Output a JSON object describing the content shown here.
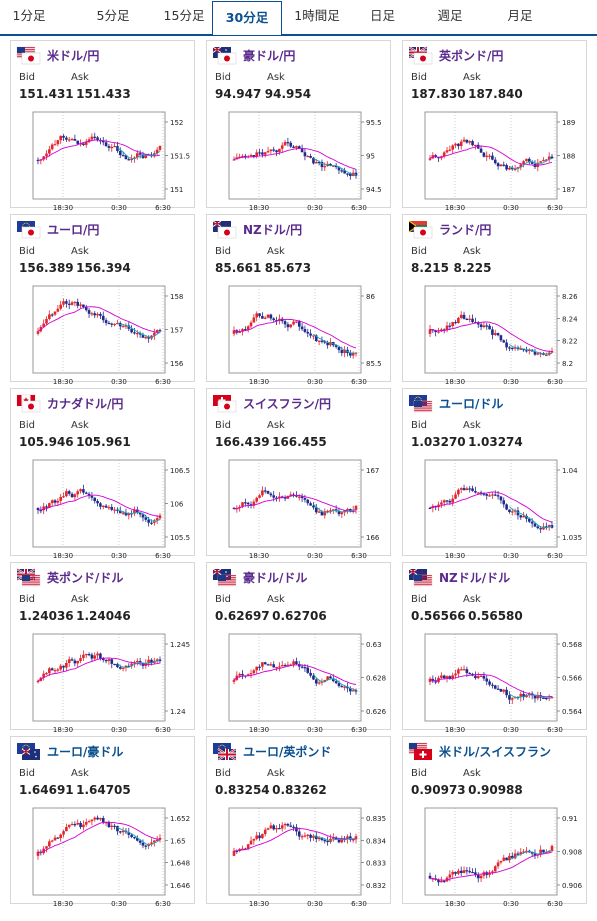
{
  "tabs": [
    {
      "label": "1分足"
    },
    {
      "label": "5分足"
    },
    {
      "label": "15分足"
    },
    {
      "label": "30分足",
      "active": true
    },
    {
      "label": "1時間足"
    },
    {
      "label": "日足"
    },
    {
      "label": "週足"
    },
    {
      "label": "月足"
    }
  ],
  "labels": {
    "bid": "Bid",
    "ask": "Ask"
  },
  "time_ticks": [
    "18:30",
    "0:30",
    "6:30"
  ],
  "colors": {
    "up": "#e3262c",
    "down": "#1f2a8c",
    "ma1": "#d400d4",
    "ma2": "#1aa7b5",
    "pair": "#5a2a8c",
    "pair_alt": "#0a4f8f"
  },
  "cards": [
    {
      "pair": "米ドル/円",
      "flags": [
        "us",
        "jp"
      ],
      "bid": "151.431",
      "ask": "151.433",
      "yticks": [
        "152",
        "151.5",
        "151"
      ]
    },
    {
      "pair": "豪ドル/円",
      "flags": [
        "au",
        "jp"
      ],
      "bid": "94.947",
      "ask": "94.954",
      "yticks": [
        "95.5",
        "95",
        "94.5"
      ]
    },
    {
      "pair": "英ポンド/円",
      "flags": [
        "gb",
        "jp"
      ],
      "bid": "187.830",
      "ask": "187.840",
      "yticks": [
        "189",
        "188",
        "187"
      ]
    },
    {
      "pair": "ユーロ/円",
      "flags": [
        "eu",
        "jp"
      ],
      "bid": "156.389",
      "ask": "156.394",
      "yticks": [
        "158",
        "157",
        "156"
      ]
    },
    {
      "pair": "NZドル/円",
      "flags": [
        "nz",
        "jp"
      ],
      "bid": "85.661",
      "ask": "85.673",
      "yticks": [
        "86",
        "85.5"
      ]
    },
    {
      "pair": "ランド/円",
      "flags": [
        "za",
        "jp"
      ],
      "bid": "8.215",
      "ask": "8.225",
      "yticks": [
        "8.26",
        "8.24",
        "8.22",
        "8.2"
      ]
    },
    {
      "pair": "カナダドル/円",
      "flags": [
        "ca",
        "jp"
      ],
      "bid": "105.946",
      "ask": "105.961",
      "yticks": [
        "106.5",
        "106",
        "105.5"
      ]
    },
    {
      "pair": "スイスフラン/円",
      "flags": [
        "ch",
        "jp"
      ],
      "bid": "166.439",
      "ask": "166.455",
      "yticks": [
        "167",
        "166"
      ]
    },
    {
      "pair": "ユーロ/ドル",
      "flags": [
        "eu",
        "us"
      ],
      "bid": "1.03270",
      "ask": "1.03274",
      "yticks": [
        "1.04",
        "1.035"
      ]
    },
    {
      "pair": "英ポンド/ドル",
      "flags": [
        "gb",
        "us"
      ],
      "bid": "1.24036",
      "ask": "1.24046",
      "yticks": [
        "1.245",
        "1.24"
      ]
    },
    {
      "pair": "豪ドル/ドル",
      "flags": [
        "au",
        "us"
      ],
      "bid": "0.62697",
      "ask": "0.62706",
      "yticks": [
        "0.63",
        "0.628",
        "0.626"
      ]
    },
    {
      "pair": "NZドル/ドル",
      "flags": [
        "nz",
        "us"
      ],
      "bid": "0.56566",
      "ask": "0.56580",
      "yticks": [
        "0.568",
        "0.566",
        "0.564"
      ]
    },
    {
      "pair": "ユーロ/豪ドル",
      "flags": [
        "eu",
        "au"
      ],
      "bid": "1.64691",
      "ask": "1.64705",
      "yticks": [
        "1.652",
        "1.65",
        "1.648",
        "1.646"
      ]
    },
    {
      "pair": "ユーロ/英ポンド",
      "flags": [
        "eu",
        "gb"
      ],
      "bid": "0.83254",
      "ask": "0.83262",
      "yticks": [
        "0.835",
        "0.834",
        "0.833",
        "0.832"
      ]
    },
    {
      "pair": "米ドル/スイスフラン",
      "flags": [
        "us",
        "ch"
      ],
      "bid": "0.90973",
      "ask": "0.90988",
      "yticks": [
        "0.91",
        "0.908",
        "0.906"
      ]
    }
  ]
}
